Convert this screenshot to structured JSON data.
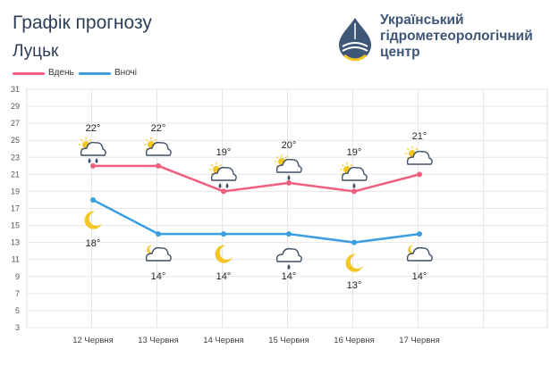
{
  "header": {
    "title": "Графік прогнозу",
    "city": "Луцьк",
    "org_line1": "Український",
    "org_line2": "гідрометеорологічний",
    "org_line3": "центр"
  },
  "legend": [
    {
      "label": "Вдень",
      "color": "#f0607e"
    },
    {
      "label": "Вночі",
      "color": "#3a9ee0"
    }
  ],
  "chart_data": {
    "type": "line",
    "categories": [
      "12 Червня",
      "13 Червня",
      "14 Червня",
      "15 Червня",
      "16 Червня",
      "17 Червня"
    ],
    "ylim": [
      3,
      31
    ],
    "yticks": [
      3,
      5,
      7,
      9,
      11,
      13,
      15,
      17,
      19,
      21,
      23,
      25,
      27,
      29,
      31
    ],
    "grid": true,
    "legend_position": "top-left",
    "series": [
      {
        "name": "Вдень",
        "color": "#f0607e",
        "values": [
          22,
          22,
          19,
          20,
          19,
          21
        ],
        "labels": [
          "22°",
          "22°",
          "19°",
          "20°",
          "19°",
          "21°"
        ],
        "icons": [
          "sun-cloud-rain-icon",
          "sun-cloud-icon",
          "sun-cloud-rain-icon",
          "sun-cloud-drop-icon",
          "sun-cloud-drop-icon",
          "sun-cloud-icon"
        ]
      },
      {
        "name": "Вночі",
        "color": "#3a9ee0",
        "values": [
          18,
          14,
          14,
          14,
          13,
          14
        ],
        "labels": [
          "18°",
          "14°",
          "14°",
          "14°",
          "13°",
          "14°"
        ],
        "icons": [
          "moon-icon",
          "moon-cloud-icon",
          "moon-icon",
          "cloud-drop-icon",
          "moon-icon",
          "moon-cloud-icon"
        ]
      }
    ]
  }
}
